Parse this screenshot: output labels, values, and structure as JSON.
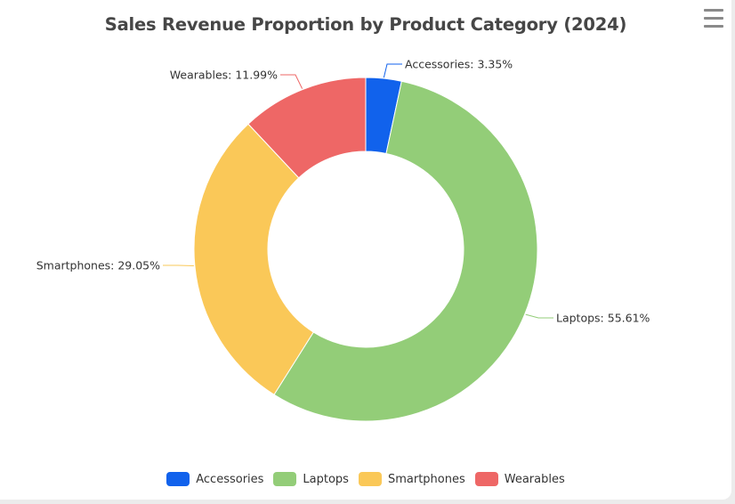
{
  "chart_data": {
    "type": "pie",
    "donut": true,
    "title": "Sales Revenue Proportion by Product Category (2024)",
    "categories": [
      "Accessories",
      "Laptops",
      "Smartphones",
      "Wearables"
    ],
    "values": [
      3.35,
      55.61,
      29.05,
      11.99
    ],
    "labels": [
      "Accessories: 3.35%",
      "Laptops: 55.61%",
      "Smartphones: 29.05%",
      "Wearables: 11.99%"
    ],
    "colors": [
      "#1162ec",
      "#93cd78",
      "#fac858",
      "#ee6766"
    ],
    "legend_position": "bottom"
  },
  "toolbar": {
    "menu_icon": "hamburger-menu-icon"
  }
}
